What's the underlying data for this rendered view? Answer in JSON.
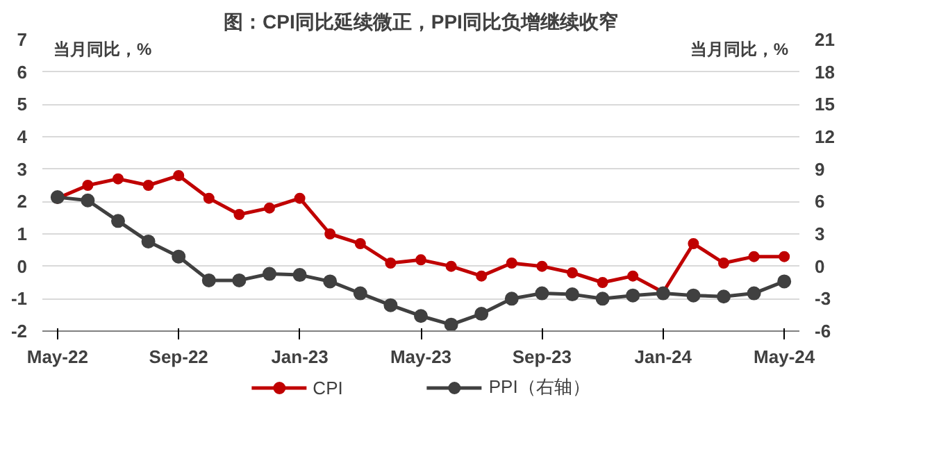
{
  "chart_data": {
    "type": "line",
    "title": "图：CPI同比延续微正，PPI同比负增继续收窄",
    "ylabel": "当月同比，%",
    "y2label": "当月同比，%",
    "categories": [
      "May-22",
      null,
      null,
      null,
      "Sep-22",
      null,
      null,
      null,
      "Jan-23",
      null,
      null,
      null,
      "May-23",
      null,
      null,
      null,
      "Sep-23",
      null,
      null,
      null,
      "Jan-24",
      null,
      null,
      null,
      "May-24"
    ],
    "series": [
      {
        "name": "CPI",
        "color": "#c00000",
        "values": [
          2.1,
          2.5,
          2.7,
          2.5,
          2.8,
          2.1,
          1.6,
          1.8,
          2.1,
          1.0,
          0.7,
          0.1,
          0.2,
          0.0,
          -0.3,
          0.1,
          0.0,
          -0.2,
          -0.5,
          -0.3,
          -0.8,
          0.7,
          0.1,
          0.3,
          0.3
        ]
      },
      {
        "name": "PPI（右轴）",
        "color": "#404040",
        "axis": "y2",
        "values": [
          6.4,
          6.1,
          4.2,
          2.3,
          0.9,
          -1.3,
          -1.3,
          -0.7,
          -0.8,
          -1.4,
          -2.5,
          -3.6,
          -4.6,
          -5.4,
          -4.4,
          -3.0,
          -2.5,
          -2.6,
          -3.0,
          -2.7,
          -2.5,
          -2.7,
          -2.8,
          -2.5,
          -1.4
        ]
      }
    ],
    "ylim": [
      -2,
      7
    ],
    "yticks": [
      -2,
      -1,
      0,
      1,
      2,
      3,
      4,
      5,
      6,
      7
    ],
    "y2lim": [
      -6,
      21
    ],
    "y2ticks": [
      -6,
      -3,
      0,
      3,
      6,
      9,
      12,
      15,
      18,
      21
    ],
    "grid": "y",
    "legend": "bottom",
    "marker": "circle",
    "line_style": "solid"
  }
}
